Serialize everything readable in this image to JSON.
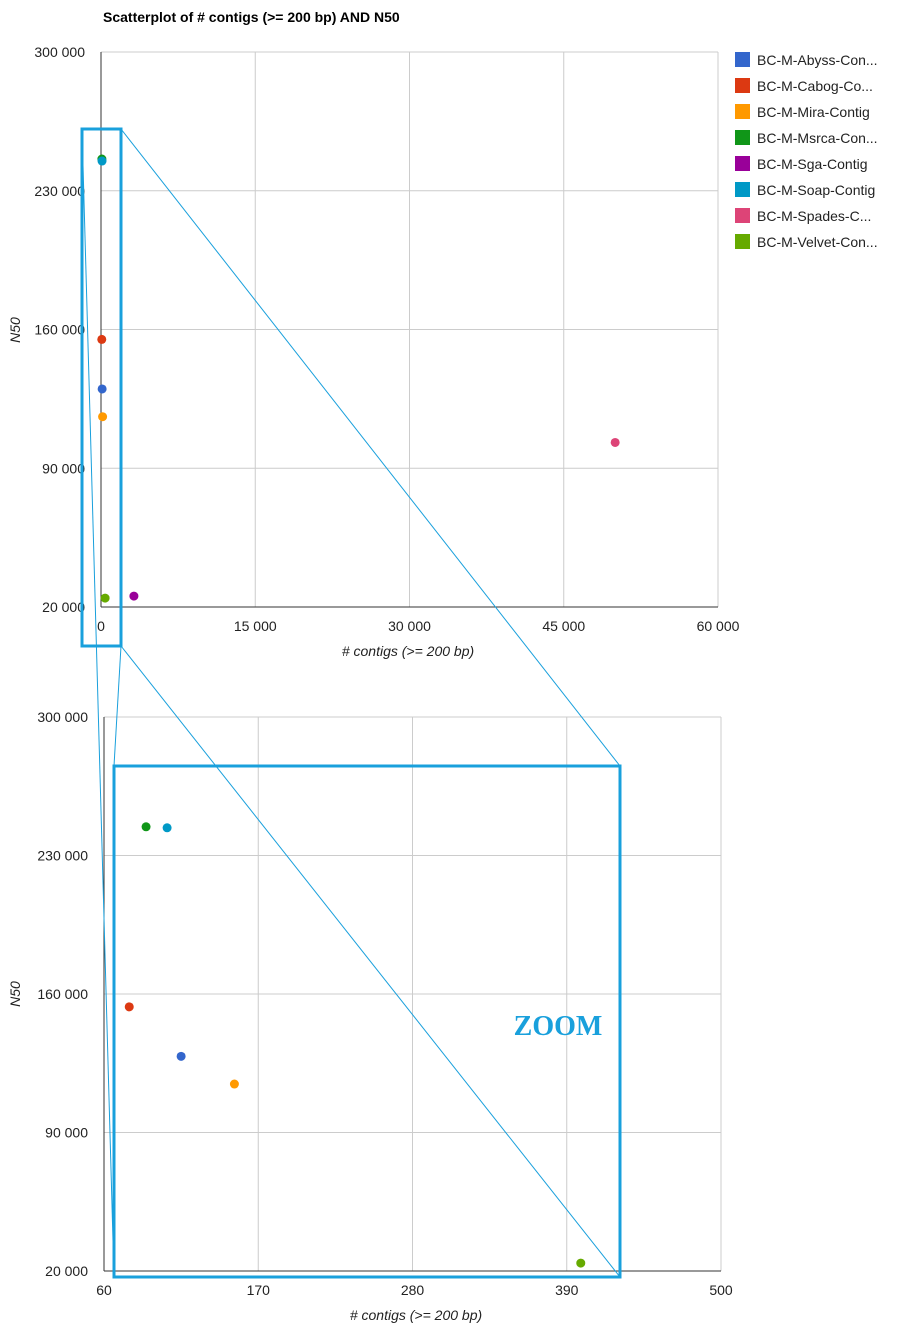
{
  "colors": {
    "highlight": "#19a0dc",
    "grid": "#cccccc",
    "axis": "#333333"
  },
  "zoom_label": "ZOOM",
  "series": [
    {
      "name": "BC-M-Abyss-Con...",
      "color": "#3366cc"
    },
    {
      "name": "BC-M-Cabog-Co...",
      "color": "#dc3912"
    },
    {
      "name": "BC-M-Mira-Contig",
      "color": "#ff9900"
    },
    {
      "name": "BC-M-Msrca-Con...",
      "color": "#109618"
    },
    {
      "name": "BC-M-Sga-Contig",
      "color": "#990099"
    },
    {
      "name": "BC-M-Soap-Contig",
      "color": "#0099c6"
    },
    {
      "name": "BC-M-Spades-C...",
      "color": "#dd4477"
    },
    {
      "name": "BC-M-Velvet-Con...",
      "color": "#66aa00"
    }
  ],
  "chart_data": [
    {
      "type": "scatter",
      "title": "Scatterplot of # contigs (>= 200 bp) AND N50",
      "xlabel": "# contigs (>= 200 bp)",
      "ylabel": "N50",
      "xlim": [
        0,
        60000
      ],
      "ylim": [
        20000,
        300000
      ],
      "x_ticks": [
        0,
        15000,
        30000,
        45000,
        60000
      ],
      "x_tick_labels": [
        "0",
        "15 000",
        "30 000",
        "45 000",
        "60 000"
      ],
      "y_ticks": [
        20000,
        90000,
        160000,
        230000,
        300000
      ],
      "y_tick_labels": [
        "20 000",
        "90 000",
        "160 000",
        "230 000",
        "300 000"
      ],
      "grid": true,
      "legend": "right",
      "points": [
        {
          "series": "BC-M-Abyss-Con...",
          "x": 110,
          "y": 130000
        },
        {
          "series": "BC-M-Cabog-Co...",
          "x": 75,
          "y": 155000
        },
        {
          "series": "BC-M-Mira-Contig",
          "x": 155,
          "y": 116000
        },
        {
          "series": "BC-M-Msrca-Con...",
          "x": 85,
          "y": 246000
        },
        {
          "series": "BC-M-Sga-Contig",
          "x": 3200,
          "y": 25500
        },
        {
          "series": "BC-M-Soap-Contig",
          "x": 100,
          "y": 245000
        },
        {
          "series": "BC-M-Spades-C...",
          "x": 50000,
          "y": 103000
        },
        {
          "series": "BC-M-Velvet-Con...",
          "x": 400,
          "y": 24500
        }
      ]
    },
    {
      "type": "scatter",
      "title": "",
      "xlabel": "# contigs (>= 200 bp)",
      "ylabel": "N50",
      "xlim": [
        60,
        500
      ],
      "ylim": [
        20000,
        300000
      ],
      "x_ticks": [
        60,
        170,
        280,
        390,
        500
      ],
      "x_tick_labels": [
        "60",
        "170",
        "280",
        "390",
        "500"
      ],
      "y_ticks": [
        20000,
        90000,
        160000,
        230000,
        300000
      ],
      "y_tick_labels": [
        "20 000",
        "90 000",
        "160 000",
        "230 000",
        "300 000"
      ],
      "grid": true,
      "points": [
        {
          "series": "BC-M-Msrca-Con...",
          "x": 90,
          "y": 244500
        },
        {
          "series": "BC-M-Soap-Contig",
          "x": 105,
          "y": 244000
        },
        {
          "series": "BC-M-Cabog-Co...",
          "x": 78,
          "y": 153500
        },
        {
          "series": "BC-M-Abyss-Con...",
          "x": 115,
          "y": 128500
        },
        {
          "series": "BC-M-Mira-Contig",
          "x": 153,
          "y": 114500
        },
        {
          "series": "BC-M-Velvet-Con...",
          "x": 400,
          "y": 24000
        }
      ]
    }
  ]
}
